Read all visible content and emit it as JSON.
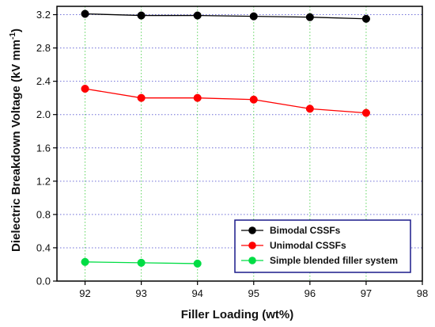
{
  "chart_data": {
    "type": "line",
    "xlabel": "Filler Loading (wt%)",
    "ylabel_main": "Dielectric Breakdown Voltage (kV mm",
    "ylabel_sup": "-1",
    "ylabel_close": ")",
    "xlim": [
      91.5,
      98
    ],
    "ylim": [
      0.0,
      3.3
    ],
    "x_ticks": [
      92,
      93,
      94,
      95,
      96,
      97,
      98
    ],
    "x_tick_labels": [
      "92",
      "93",
      "94",
      "95",
      "96",
      "97",
      "98"
    ],
    "y_ticks": [
      0.0,
      0.4,
      0.8,
      1.2,
      1.6,
      2.0,
      2.4,
      2.8,
      3.2
    ],
    "y_tick_labels": [
      "0.0",
      "0.4",
      "0.8",
      "1.2",
      "1.6",
      "2.0",
      "2.4",
      "2.8",
      "3.2"
    ],
    "grid": {
      "vertical_x": [
        92,
        93,
        94,
        95,
        96,
        97
      ],
      "vertical_color": "#5fd45f",
      "horizontal_color": "#6f6fd8",
      "style": "dotted"
    },
    "legend_position": "bottom-right",
    "series": [
      {
        "name": "Bimodal CSSFs",
        "color": "#000000",
        "x": [
          92,
          93,
          94,
          95,
          96,
          97
        ],
        "y": [
          3.21,
          3.19,
          3.19,
          3.18,
          3.17,
          3.15
        ]
      },
      {
        "name": "Unimodal CSSFs",
        "color": "#ff0000",
        "x": [
          92,
          93,
          94,
          95,
          96,
          97
        ],
        "y": [
          2.31,
          2.2,
          2.2,
          2.18,
          2.07,
          2.02
        ]
      },
      {
        "name": "Simple blended filler system",
        "color": "#00dd44",
        "x": [
          92,
          93,
          94
        ],
        "y": [
          0.23,
          0.22,
          0.21
        ]
      }
    ]
  }
}
